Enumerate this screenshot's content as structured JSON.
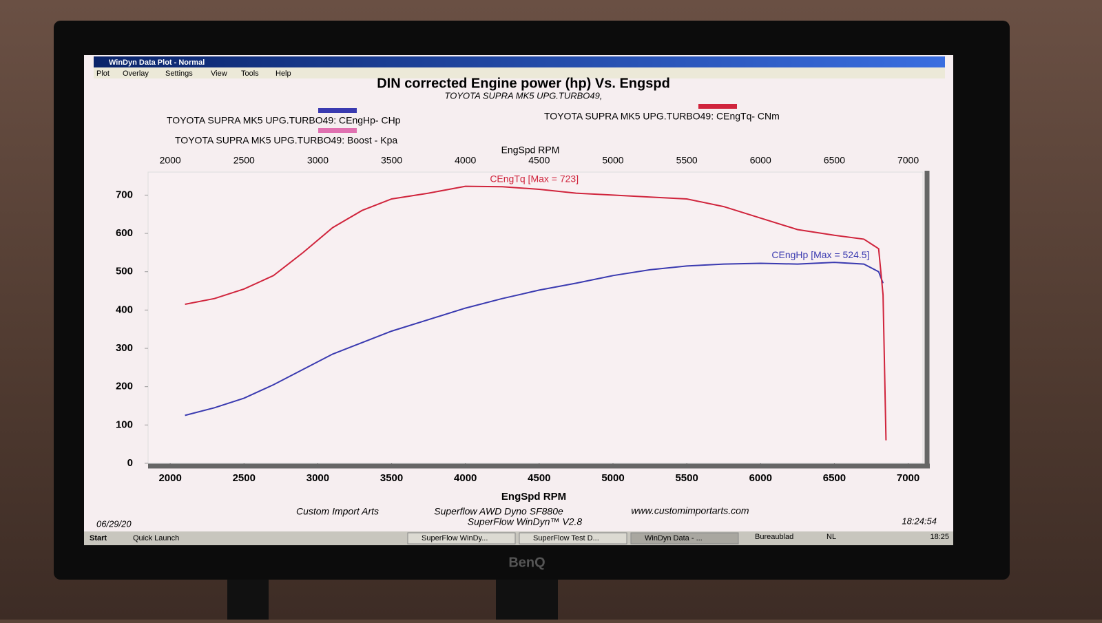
{
  "window": {
    "title": "WinDyn Data Plot - Normal",
    "menu": [
      "Plot",
      "Overlay",
      "Settings",
      "View",
      "Tools",
      "Help"
    ]
  },
  "chart_data": {
    "type": "line",
    "title": "DIN corrected Engine power (hp) Vs. Engspd",
    "subtitle": "TOYOTA SUPRA MK5 UPG.TURBO49,",
    "x_label": "EngSpd  RPM",
    "x": [
      2100,
      2300,
      2500,
      2700,
      2900,
      3100,
      3300,
      3500,
      3750,
      4000,
      4250,
      4500,
      4750,
      5000,
      5250,
      5500,
      5750,
      6000,
      6250,
      6500,
      6700,
      6800,
      6830,
      6850
    ],
    "series": [
      {
        "name": "TOYOTA SUPRA MK5 UPG.TURBO49: CEngHp- CHp",
        "color": "#3a3ab0",
        "values": [
          125,
          145,
          170,
          205,
          245,
          285,
          315,
          345,
          375,
          405,
          430,
          452,
          470,
          490,
          505,
          515,
          520,
          522,
          520,
          524.5,
          520,
          500,
          470,
          null
        ]
      },
      {
        "name": "TOYOTA SUPRA MK5 UPG.TURBO49: CEngTq- CNm",
        "color": "#d0243c",
        "values": [
          415,
          430,
          455,
          490,
          550,
          615,
          660,
          690,
          705,
          723,
          722,
          715,
          705,
          700,
          695,
          690,
          670,
          640,
          610,
          595,
          585,
          560,
          440,
          60
        ]
      },
      {
        "name": "TOYOTA SUPRA MK5 UPG.TURBO49: Boost - Kpa",
        "color": "#e070b0",
        "values": [
          null,
          null,
          null,
          null,
          null,
          null,
          null,
          null,
          null,
          null,
          null,
          null,
          null,
          null,
          null,
          null,
          null,
          null,
          null,
          null,
          null,
          null,
          null,
          null
        ]
      }
    ],
    "annotations": [
      "CEngHp [Max = 524.5]",
      "CEngTq [Max = 723]"
    ],
    "xlim": [
      1850,
      7100
    ],
    "xticks": [
      2000,
      2500,
      3000,
      3500,
      4000,
      4500,
      5000,
      5500,
      6000,
      6500,
      7000
    ],
    "ylim": [
      0,
      760
    ],
    "yticks": [
      0,
      100,
      200,
      300,
      400,
      500,
      600,
      700
    ],
    "grid": false
  },
  "footer": {
    "company": "Custom Import Arts",
    "dyno": "Superflow AWD Dyno SF880e",
    "website": "www.customimportarts.com",
    "software": "SuperFlow WinDyn™ V2.8",
    "date": "06/29/20",
    "time": "18:24:54"
  },
  "taskbar": {
    "start": "Start",
    "quick_launch": "Quick Launch",
    "tasks": [
      "SuperFlow WinDy...",
      "SuperFlow Test D...",
      "WinDyn Data - ..."
    ],
    "desktop": "Bureaublad",
    "language": "NL",
    "clock": "18:25"
  },
  "monitor_brand": "BenQ"
}
